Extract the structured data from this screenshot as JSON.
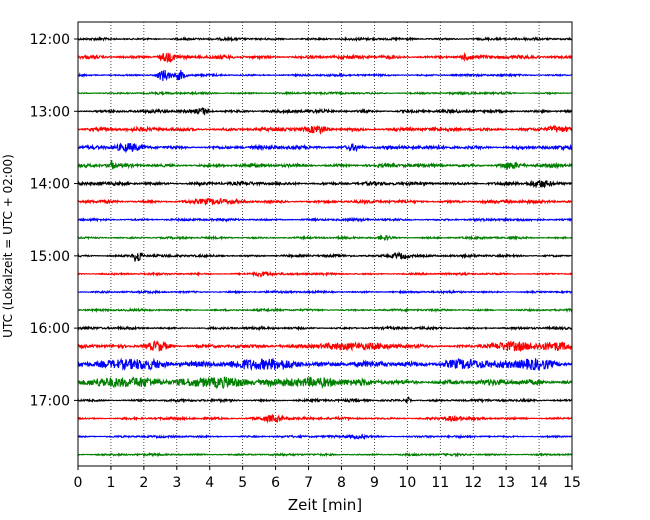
{
  "chart_data": {
    "type": "line",
    "title": "",
    "xlabel": "Zeit  [min]",
    "ylabel": "UTC (Lokalzeit = UTC + 02:00)",
    "xlim": [
      0,
      15
    ],
    "x_ticks": [
      0,
      1,
      2,
      3,
      4,
      5,
      6,
      7,
      8,
      9,
      10,
      11,
      12,
      13,
      14,
      15
    ],
    "y_tick_labels": [
      "12:00",
      "13:00",
      "14:00",
      "15:00",
      "16:00",
      "17:00"
    ],
    "row_interval_minutes": 15,
    "grid": true,
    "legend": "none",
    "trace_colors": [
      "#000000",
      "#ff0000",
      "#0000ff",
      "#008000"
    ],
    "rows": [
      {
        "time": "12:00",
        "color": "#000000",
        "amplitude": 0.35,
        "events": []
      },
      {
        "time": "12:15",
        "color": "#ff0000",
        "amplitude": 0.5,
        "events": [
          {
            "x": 2.7,
            "amp": 1.2,
            "width": 0.25
          },
          {
            "x": 11.8,
            "amp": 0.8,
            "width": 0.2
          }
        ]
      },
      {
        "time": "12:30",
        "color": "#0000ff",
        "amplitude": 0.3,
        "events": [
          {
            "x": 2.6,
            "amp": 1.6,
            "width": 0.2
          },
          {
            "x": 3.1,
            "amp": 1.4,
            "width": 0.15
          }
        ]
      },
      {
        "time": "12:45",
        "color": "#008000",
        "amplitude": 0.3,
        "events": []
      },
      {
        "time": "13:00",
        "color": "#000000",
        "amplitude": 0.45,
        "events": [
          {
            "x": 3.8,
            "amp": 0.9,
            "width": 0.2
          }
        ]
      },
      {
        "time": "13:15",
        "color": "#ff0000",
        "amplitude": 0.55,
        "events": [
          {
            "x": 7.3,
            "amp": 0.8,
            "width": 0.3
          },
          {
            "x": 14.5,
            "amp": 0.8,
            "width": 0.3
          }
        ]
      },
      {
        "time": "13:30",
        "color": "#0000ff",
        "amplitude": 0.55,
        "events": [
          {
            "x": 1.5,
            "amp": 0.8,
            "width": 0.4
          },
          {
            "x": 8.4,
            "amp": 0.9,
            "width": 0.2
          }
        ]
      },
      {
        "time": "13:45",
        "color": "#008000",
        "amplitude": 0.5,
        "events": [
          {
            "x": 1.0,
            "amp": 1.6,
            "width": 0.08
          },
          {
            "x": 13.1,
            "amp": 0.8,
            "width": 0.3
          }
        ]
      },
      {
        "time": "14:00",
        "color": "#000000",
        "amplitude": 0.5,
        "events": [
          {
            "x": 14.0,
            "amp": 0.8,
            "width": 0.3
          }
        ]
      },
      {
        "time": "14:15",
        "color": "#ff0000",
        "amplitude": 0.45,
        "events": [
          {
            "x": 4.1,
            "amp": 0.7,
            "width": 0.5
          }
        ]
      },
      {
        "time": "14:30",
        "color": "#0000ff",
        "amplitude": 0.35,
        "events": []
      },
      {
        "time": "14:45",
        "color": "#008000",
        "amplitude": 0.3,
        "events": [
          {
            "x": 9.3,
            "amp": 0.6,
            "width": 0.2
          }
        ]
      },
      {
        "time": "15:00",
        "color": "#000000",
        "amplitude": 0.35,
        "events": [
          {
            "x": 1.8,
            "amp": 2.2,
            "width": 0.12
          },
          {
            "x": 9.8,
            "amp": 0.9,
            "width": 0.3
          }
        ]
      },
      {
        "time": "15:15",
        "color": "#ff0000",
        "amplitude": 0.3,
        "events": [
          {
            "x": 5.6,
            "amp": 0.7,
            "width": 0.3
          }
        ]
      },
      {
        "time": "15:30",
        "color": "#0000ff",
        "amplitude": 0.3,
        "events": []
      },
      {
        "time": "15:45",
        "color": "#008000",
        "amplitude": 0.3,
        "events": []
      },
      {
        "time": "16:00",
        "color": "#000000",
        "amplitude": 0.35,
        "events": []
      },
      {
        "time": "16:15",
        "color": "#ff0000",
        "amplitude": 0.45,
        "events": [
          {
            "x": 2.4,
            "amp": 1.4,
            "width": 0.35
          },
          {
            "x": 8.2,
            "amp": 0.9,
            "width": 1.2
          },
          {
            "x": 13.2,
            "amp": 1.1,
            "width": 0.8
          },
          {
            "x": 14.6,
            "amp": 1.0,
            "width": 0.5
          }
        ]
      },
      {
        "time": "16:30",
        "color": "#0000ff",
        "amplitude": 0.8,
        "events": [
          {
            "x": 1.8,
            "amp": 1.4,
            "width": 0.8
          },
          {
            "x": 5.8,
            "amp": 1.4,
            "width": 0.9
          },
          {
            "x": 11.8,
            "amp": 1.2,
            "width": 0.7
          },
          {
            "x": 13.8,
            "amp": 1.1,
            "width": 0.6
          }
        ]
      },
      {
        "time": "16:45",
        "color": "#008000",
        "amplitude": 0.8,
        "events": [
          {
            "x": 1.5,
            "amp": 1.3,
            "width": 1.0
          },
          {
            "x": 4.2,
            "amp": 1.0,
            "width": 0.8
          },
          {
            "x": 6.8,
            "amp": 1.0,
            "width": 1.2
          }
        ]
      },
      {
        "time": "17:00",
        "color": "#000000",
        "amplitude": 0.35,
        "events": [
          {
            "x": 10.0,
            "amp": 1.0,
            "width": 0.08
          }
        ]
      },
      {
        "time": "17:15",
        "color": "#ff0000",
        "amplitude": 0.35,
        "events": [
          {
            "x": 5.9,
            "amp": 1.0,
            "width": 0.35
          },
          {
            "x": 11.4,
            "amp": 0.7,
            "width": 0.25
          }
        ]
      },
      {
        "time": "17:30",
        "color": "#0000ff",
        "amplitude": 0.3,
        "events": [
          {
            "x": 8.5,
            "amp": 0.6,
            "width": 0.3
          }
        ]
      },
      {
        "time": "17:45",
        "color": "#008000",
        "amplitude": 0.3,
        "events": []
      }
    ]
  }
}
